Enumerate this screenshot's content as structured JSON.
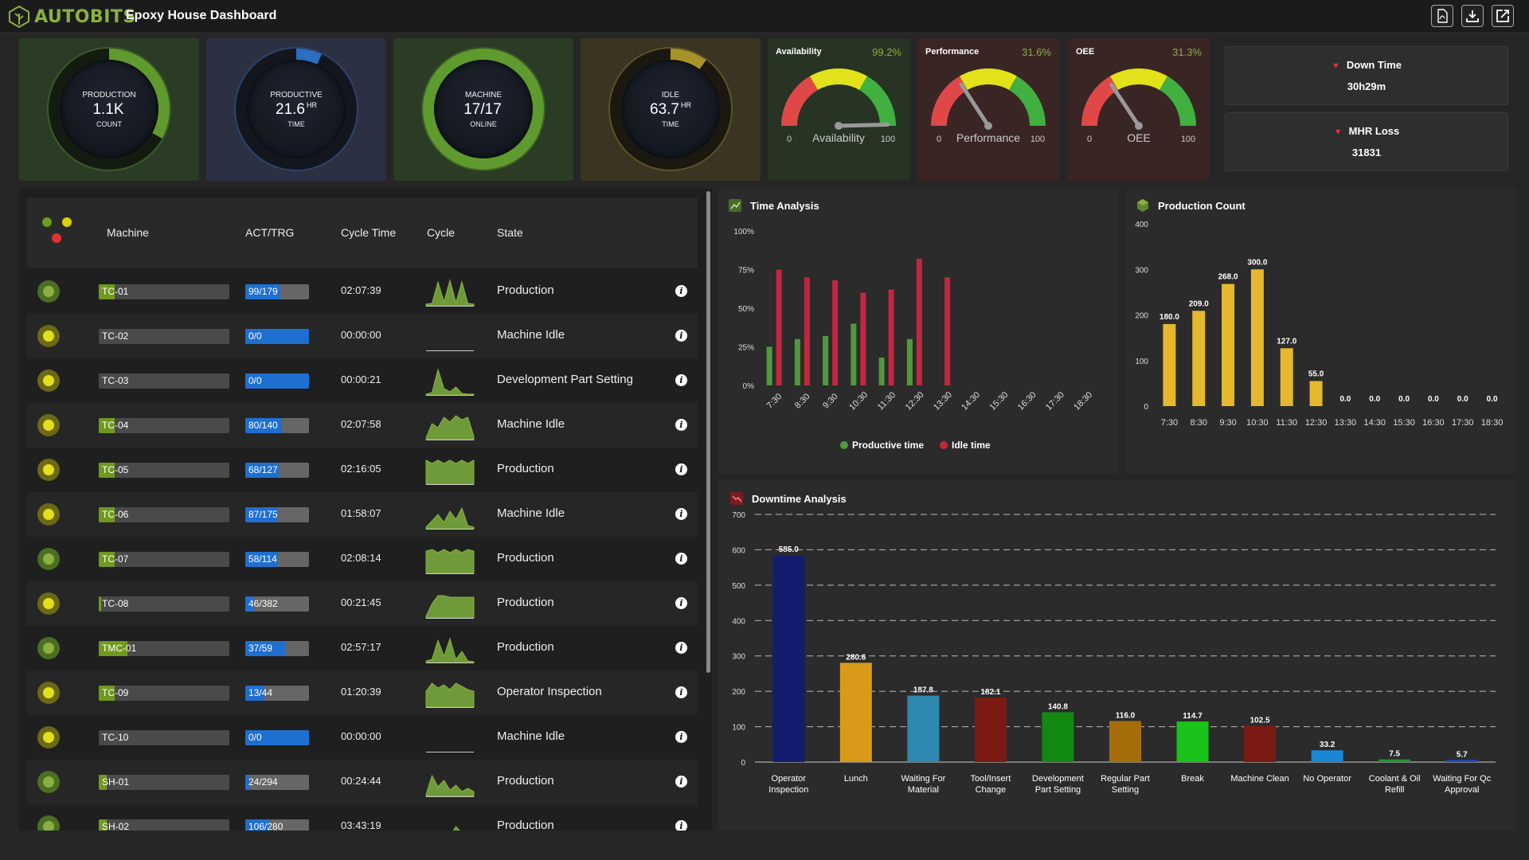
{
  "app": {
    "brand": "AUTOBITS",
    "title": "Epoxy House Dashboard"
  },
  "toolbar": {
    "icons": [
      "pdf-icon",
      "download-icon",
      "export-icon"
    ]
  },
  "kpis": [
    {
      "id": "production",
      "l1": "PRODUCTION",
      "value": "1.1K",
      "unit": "",
      "l3": "COUNT",
      "ring": "#5e9a2e",
      "bg": "#2b3c25",
      "progress": 0.33
    },
    {
      "id": "productive",
      "l1": "PRODUCTIVE",
      "value": "21.6",
      "unit": "HR",
      "l3": "TIME",
      "ring": "#2a6fc0",
      "bg": "#2c3043",
      "progress": 0.07
    },
    {
      "id": "machine",
      "l1": "MACHINE",
      "value": "17/17",
      "unit": "",
      "l3": "ONLINE",
      "ring": "#5e9a2e",
      "bg": "#2b3c25",
      "progress": 1.0
    },
    {
      "id": "idle",
      "l1": "IDLE",
      "value": "63.7",
      "unit": "HR",
      "l3": "TIME",
      "ring": "#a8932a",
      "bg": "#3a3422",
      "progress": 0.1
    }
  ],
  "gauges": [
    {
      "id": "availability",
      "title": "Availability",
      "pct": "99.2%",
      "label": "Availability",
      "min": "0",
      "max": "100",
      "value": 99.2,
      "bg": "#273323"
    },
    {
      "id": "performance",
      "title": "Performance",
      "pct": "31.6%",
      "label": "Performance",
      "min": "0",
      "max": "100",
      "value": 31.6,
      "bg": "#3a2525"
    },
    {
      "id": "oee",
      "title": "OEE",
      "pct": "31.3%",
      "label": "OEE",
      "min": "0",
      "max": "100",
      "value": 31.3,
      "bg": "#3a2525"
    }
  ],
  "downtime_summary": {
    "down_time_label": "Down Time",
    "down_time_value": "30h29m",
    "mhr_label": "MHR Loss",
    "mhr_value": "31831"
  },
  "table": {
    "headers": {
      "machine": "Machine",
      "act": "ACT/TRG",
      "cycle_time": "Cycle Time",
      "cycle": "Cycle",
      "state": "State"
    },
    "rows": [
      {
        "machine": "TC-01",
        "act": "99/179",
        "actfrac": 0.55,
        "mfrac": 0.12,
        "cycle_time": "02:07:39",
        "state": "Production",
        "status": "green",
        "spark": [
          2,
          3,
          30,
          5,
          32,
          4,
          30,
          3,
          2
        ]
      },
      {
        "machine": "TC-02",
        "act": "0/0",
        "actfrac": 1,
        "mfrac": 0,
        "cycle_time": "00:00:00",
        "state": "Machine Idle",
        "status": "yellow",
        "spark": []
      },
      {
        "machine": "TC-03",
        "act": "0/0",
        "actfrac": 1,
        "mfrac": 0,
        "cycle_time": "00:00:21",
        "state": "Development Part Setting",
        "status": "yellow",
        "spark": [
          1,
          3,
          32,
          8,
          4,
          10,
          2,
          1,
          1
        ]
      },
      {
        "machine": "TC-04",
        "act": "80/140",
        "actfrac": 0.57,
        "mfrac": 0.12,
        "cycle_time": "02:07:58",
        "state": "Machine Idle",
        "status": "yellow",
        "spark": [
          2,
          20,
          15,
          28,
          22,
          30,
          25,
          28,
          4
        ]
      },
      {
        "machine": "TC-05",
        "act": "68/127",
        "actfrac": 0.53,
        "mfrac": 0.12,
        "cycle_time": "02:16:05",
        "state": "Production",
        "status": "yellow",
        "spark": [
          30,
          26,
          30,
          26,
          30,
          26,
          30,
          26,
          30
        ]
      },
      {
        "machine": "TC-06",
        "act": "87/175",
        "actfrac": 0.5,
        "mfrac": 0.12,
        "cycle_time": "01:58:07",
        "state": "Machine Idle",
        "status": "yellow",
        "spark": [
          2,
          10,
          18,
          8,
          22,
          12,
          26,
          4,
          2
        ]
      },
      {
        "machine": "TC-07",
        "act": "58/114",
        "actfrac": 0.51,
        "mfrac": 0.12,
        "cycle_time": "02:08:14",
        "state": "Production",
        "status": "green",
        "spark": [
          28,
          30,
          26,
          30,
          26,
          30,
          26,
          30,
          28
        ]
      },
      {
        "machine": "TC-08",
        "act": "46/382",
        "actfrac": 0.12,
        "mfrac": 0.02,
        "cycle_time": "00:21:45",
        "state": "Production",
        "status": "yellow",
        "spark": [
          2,
          18,
          28,
          28,
          26,
          26,
          26,
          26,
          26
        ]
      },
      {
        "machine": "TMC-01",
        "act": "37/59",
        "actfrac": 0.63,
        "mfrac": 0.22,
        "cycle_time": "02:57:17",
        "state": "Production",
        "status": "green",
        "spark": [
          2,
          4,
          28,
          8,
          30,
          4,
          14,
          2,
          1
        ]
      },
      {
        "machine": "TC-09",
        "act": "13/44",
        "actfrac": 0.3,
        "mfrac": 0.12,
        "cycle_time": "01:20:39",
        "state": "Operator Inspection",
        "status": "yellow",
        "spark": [
          20,
          30,
          24,
          28,
          22,
          30,
          26,
          22,
          20
        ]
      },
      {
        "machine": "TC-10",
        "act": "0/0",
        "actfrac": 1,
        "mfrac": 0,
        "cycle_time": "00:00:00",
        "state": "Machine Idle",
        "status": "yellow",
        "spark": []
      },
      {
        "machine": "SH-01",
        "act": "24/294",
        "actfrac": 0.08,
        "mfrac": 0.06,
        "cycle_time": "00:24:44",
        "state": "Production",
        "status": "green",
        "spark": [
          2,
          26,
          12,
          20,
          8,
          14,
          6,
          10,
          6
        ]
      },
      {
        "machine": "SH-02",
        "act": "106/280",
        "actfrac": 0.38,
        "mfrac": 0.06,
        "cycle_time": "03:43:19",
        "state": "Production",
        "status": "green",
        "spark": [
          2,
          4,
          8,
          12,
          6,
          18,
          10,
          8,
          4
        ]
      }
    ]
  },
  "charts": {
    "time_analysis_title": "Time Analysis",
    "production_count_title": "Production Count",
    "downtime_title": "Downtime Analysis"
  },
  "chart_data": [
    {
      "type": "bar",
      "title": "Time Analysis",
      "categories": [
        "7:30",
        "8:30",
        "9:30",
        "10:30",
        "11:30",
        "12:30",
        "13:30",
        "14:30",
        "15:30",
        "16:30",
        "17:30",
        "18:30"
      ],
      "series": [
        {
          "name": "Productive time",
          "color": "#4f9a3a",
          "values": [
            25,
            30,
            32,
            40,
            18,
            30,
            0,
            0,
            0,
            0,
            0,
            0
          ]
        },
        {
          "name": "Idle time",
          "color": "#c4263e",
          "values": [
            75,
            70,
            68,
            60,
            62,
            82,
            70,
            0,
            0,
            0,
            0,
            0
          ]
        }
      ],
      "yticks": [
        "0%",
        "25%",
        "50%",
        "75%",
        "100%"
      ],
      "ylim": [
        0,
        100
      ]
    },
    {
      "type": "bar",
      "title": "Production Count",
      "categories": [
        "7:30",
        "8:30",
        "9:30",
        "10:30",
        "11:30",
        "12:30",
        "13:30",
        "14:30",
        "15:30",
        "16:30",
        "17:30",
        "18:30"
      ],
      "values": [
        180.0,
        209.0,
        268.0,
        300.0,
        127.0,
        55.0,
        0.0,
        0.0,
        0.0,
        0.0,
        0.0,
        0.0
      ],
      "labels": [
        "180.0",
        "209.0",
        "268.0",
        "300.0",
        "127.0",
        "55.0",
        "0.0",
        "0.0",
        "0.0",
        "0.0",
        "0.0",
        "0.0"
      ],
      "yticks": [
        "0",
        "100",
        "200",
        "300",
        "400"
      ],
      "ylim": [
        0,
        400
      ],
      "color": "#e5b82e"
    },
    {
      "type": "bar",
      "title": "Downtime Analysis",
      "categories": [
        [
          "Operator",
          "Inspection"
        ],
        [
          "Lunch"
        ],
        [
          "Waiting For",
          "Material"
        ],
        [
          "Tool/Insert",
          "Change"
        ],
        [
          "Development",
          "Part Setting"
        ],
        [
          "Regular Part",
          "Setting"
        ],
        [
          "Break"
        ],
        [
          "Machine Clean"
        ],
        [
          "No Operator"
        ],
        [
          "Coolant & Oil",
          "Refill"
        ],
        [
          "Waiting For Qc",
          "Approval"
        ]
      ],
      "values": [
        585.0,
        280.6,
        187.8,
        182.1,
        140.8,
        116.0,
        114.7,
        102.5,
        33.2,
        7.5,
        5.7
      ],
      "labels": [
        "585.0",
        "280.6",
        "187.8",
        "182.1",
        "140.8",
        "116.0",
        "114.7",
        "102.5",
        "33.2",
        "7.5",
        "5.7"
      ],
      "colors": [
        "#141c6e",
        "#d99a1a",
        "#2f88b0",
        "#7a1a12",
        "#128a12",
        "#a56d0a",
        "#1ac21a",
        "#7a1a12",
        "#1a86d6",
        "#1a9a2a",
        "#1a4ad6"
      ],
      "yticks": [
        "0",
        "100",
        "200",
        "300",
        "400",
        "500",
        "600",
        "700"
      ],
      "ylim": [
        0,
        700
      ]
    }
  ]
}
